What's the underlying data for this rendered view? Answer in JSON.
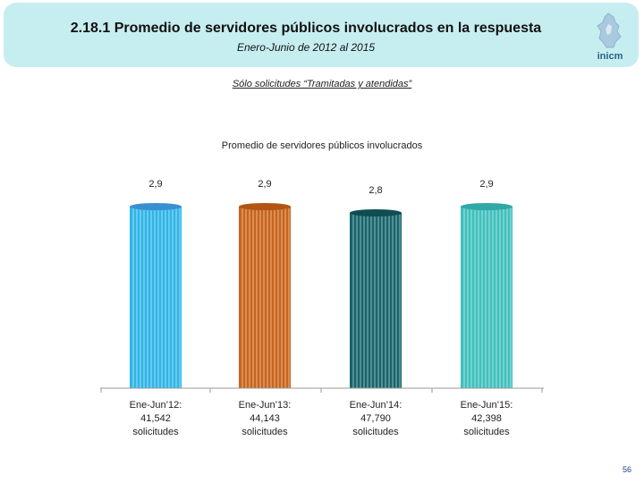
{
  "header": {
    "title": "2.18.1 Promedio de servidores públicos involucrados en la respuesta",
    "subtitle": "Enero-Junio de 2012 al 2015",
    "logo_name": "inicm"
  },
  "note": "Sólo solicitudes “Tramitadas y atendidas”",
  "chart_data": {
    "type": "bar",
    "title": "Promedio de servidores públicos involucrados",
    "categories": [
      [
        "Ene-Jun’12:",
        "41,542",
        "solicitudes"
      ],
      [
        "Ene-Jun’13:",
        "44,143",
        "solicitudes"
      ],
      [
        "Ene-Jun’14:",
        "47,790",
        "solicitudes"
      ],
      [
        "Ene-Jun’15:",
        "42,398",
        "solicitudes"
      ]
    ],
    "values": [
      2.9,
      2.9,
      2.8,
      2.9
    ],
    "value_labels": [
      "2,9",
      "2,9",
      "2,8",
      "2,9"
    ],
    "colors": [
      "#2fb5e8",
      "#c8641a",
      "#16656b",
      "#3fc0bd"
    ],
    "cap_colors": [
      "#3a8fd0",
      "#b25512",
      "#0f4d52",
      "#2fa8a6"
    ],
    "ylim": [
      0,
      3.2
    ],
    "xlabel": "",
    "ylabel": ""
  },
  "footer": {
    "page_number": "56"
  }
}
